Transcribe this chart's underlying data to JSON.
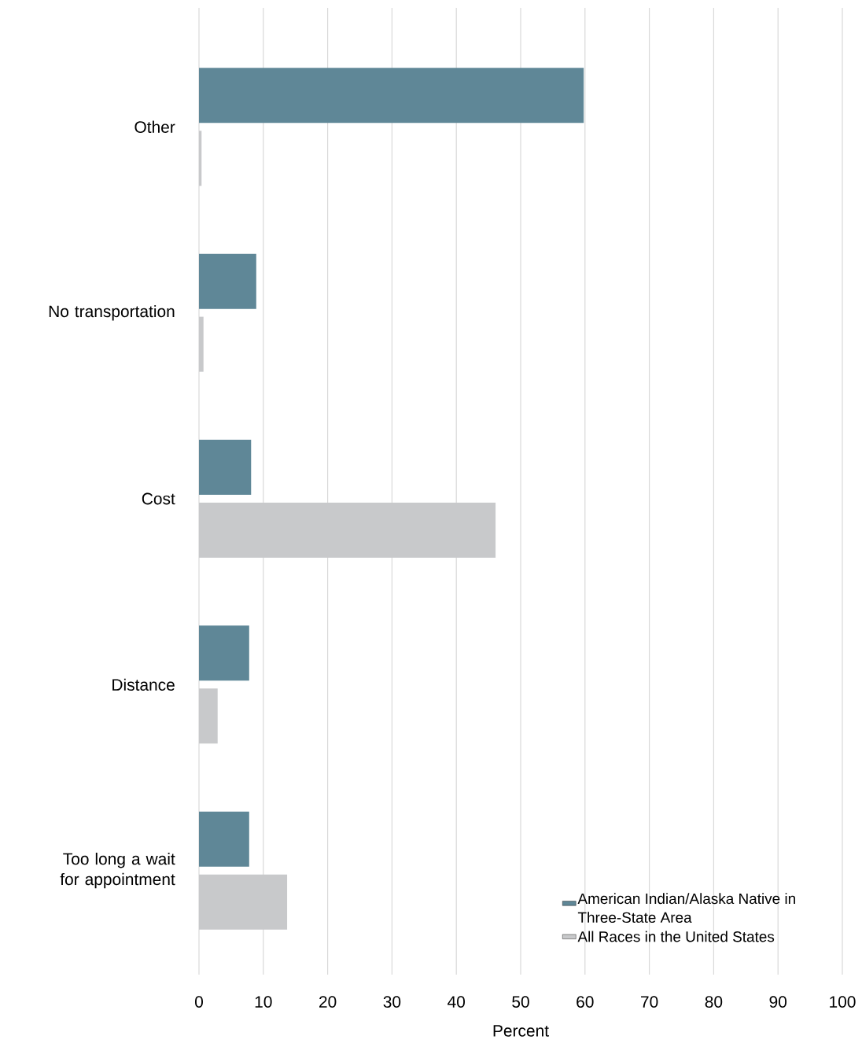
{
  "chart_data": {
    "type": "bar",
    "orientation": "horizontal",
    "xlabel": "Percent",
    "categories": [
      "Other",
      "No transportation",
      "Cost",
      "Distance",
      "Too long a wait for appointment"
    ],
    "series": [
      {
        "name": "American Indian/Alaska Native in Three-State Area",
        "color": "#5f8797",
        "values": [
          59.8,
          8.9,
          8.1,
          7.8,
          7.8
        ]
      },
      {
        "name": "All Races in the United States",
        "color": "#c8c9cb",
        "values": [
          0.4,
          0.7,
          46.1,
          2.9,
          13.7
        ]
      }
    ],
    "xlim": [
      0,
      100
    ],
    "xticks": [
      0,
      10,
      20,
      30,
      40,
      50,
      60,
      70,
      80,
      90,
      100
    ],
    "grid": "x",
    "legend": "bottom right"
  }
}
